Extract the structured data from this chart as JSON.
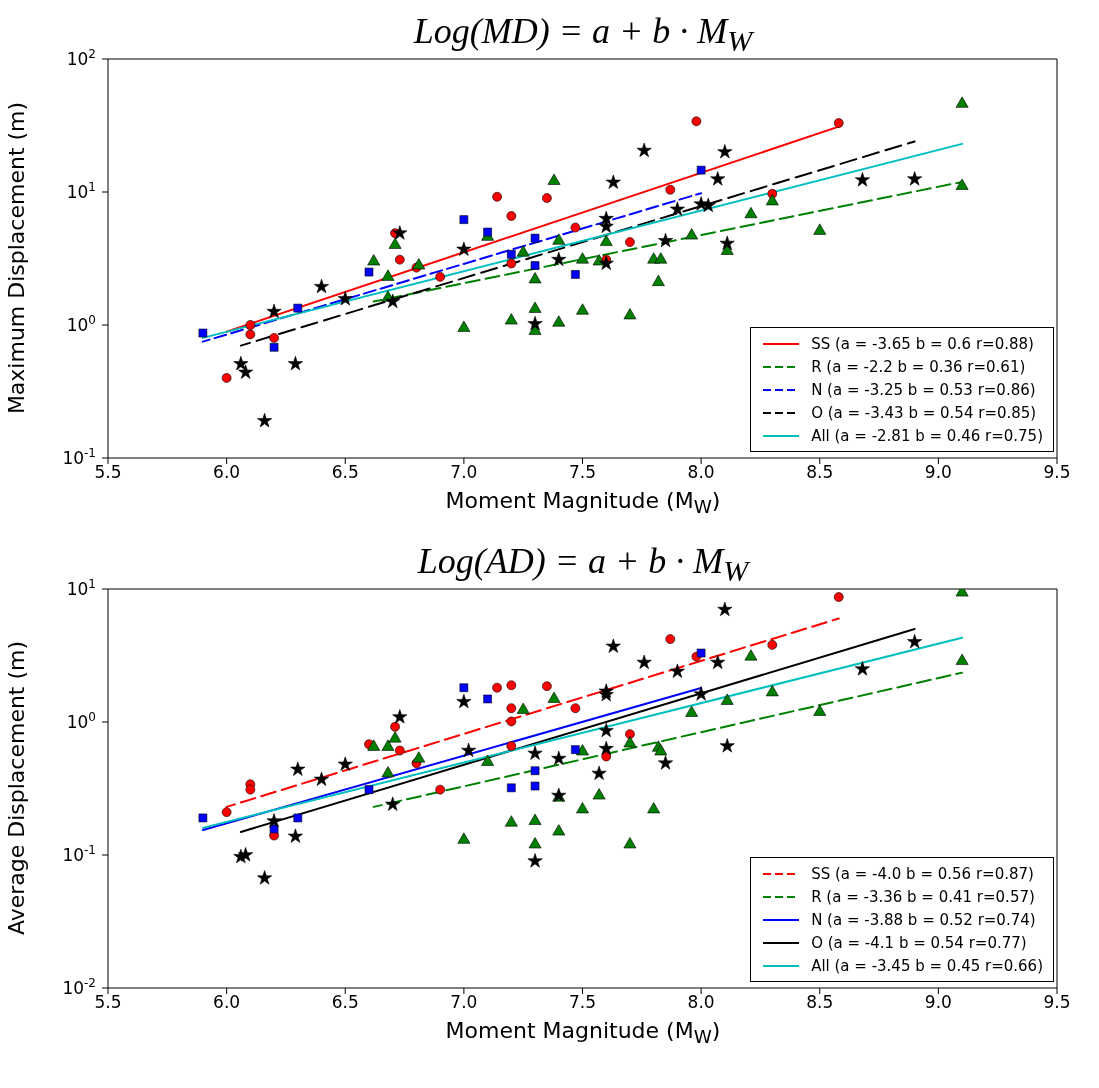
{
  "chart_data": [
    {
      "type": "scatter",
      "title": "Log(MD) = a + b · M$_{W}$",
      "xlabel": "Moment Magnitude (M$_{W}$)",
      "ylabel": "Maximum Displacement (m)",
      "log": "y",
      "grid": false,
      "legend": "bottom right",
      "xlim": [
        5.5,
        9.5
      ],
      "xticks": [
        {
          "value": 5.5,
          "label": "5.5"
        },
        {
          "value": 6,
          "label": "6.0"
        },
        {
          "value": 6.5,
          "label": "6.5"
        },
        {
          "value": 7,
          "label": "7.0"
        },
        {
          "value": 7.5,
          "label": "7.5"
        },
        {
          "value": 8,
          "label": "8.0"
        },
        {
          "value": 8.5,
          "label": "8.5"
        },
        {
          "value": 9,
          "label": "9.0"
        },
        {
          "value": 9.5,
          "label": "9.5"
        }
      ],
      "ylim": [
        0.1,
        100
      ],
      "yticks": [
        {
          "value": 0.1,
          "label": "10$^{-1}$"
        },
        {
          "value": 1,
          "label": "10$^{0}$"
        },
        {
          "value": 10,
          "label": "10$^{1}$"
        },
        {
          "value": 100,
          "label": "10$^{2}$"
        }
      ],
      "series": [
        {
          "marker": "circle",
          "color": "#ff0000",
          "x": [
            6.0,
            6.1,
            6.1,
            6.2,
            6.71,
            6.73,
            6.8,
            6.9,
            7.14,
            7.2,
            7.2,
            7.35,
            7.47,
            7.6,
            7.7,
            7.87,
            7.98,
            8.3,
            8.58
          ],
          "values": [
            0.4,
            1.0,
            0.85,
            0.8,
            4.9,
            3.1,
            2.7,
            2.3,
            9.2,
            6.6,
            2.9,
            9.0,
            5.4,
            3.1,
            4.2,
            10.4,
            34,
            9.7,
            33
          ]
        },
        {
          "marker": "triangle",
          "color": "#008000",
          "x": [
            6.62,
            6.68,
            6.68,
            6.71,
            6.81,
            7.0,
            7.1,
            7.2,
            7.25,
            7.3,
            7.3,
            7.3,
            7.38,
            7.4,
            7.4,
            7.5,
            7.5,
            7.57,
            7.6,
            7.7,
            7.8,
            7.82,
            7.83,
            7.96,
            8.11,
            8.21,
            8.3,
            8.5,
            9.1,
            9.1
          ],
          "values": [
            3.0,
            2.3,
            1.6,
            4.0,
            2.8,
            0.95,
            4.6,
            1.08,
            3.5,
            2.2,
            1.32,
            0.9,
            12.1,
            4.3,
            1.04,
            3.1,
            1.28,
            3.0,
            4.2,
            1.18,
            3.1,
            2.1,
            3.1,
            4.7,
            3.6,
            6.8,
            8.5,
            5.1,
            46,
            11.1
          ]
        },
        {
          "marker": "square",
          "color": "#0000ff",
          "x": [
            5.9,
            6.2,
            6.3,
            6.6,
            7.0,
            7.1,
            7.2,
            7.3,
            7.3,
            7.47,
            8.0
          ],
          "values": [
            0.87,
            0.68,
            1.34,
            2.5,
            6.2,
            5.0,
            3.4,
            4.5,
            2.8,
            2.4,
            14.6
          ]
        },
        {
          "marker": "star",
          "color": "#000000",
          "x": [
            6.06,
            6.08,
            6.16,
            6.2,
            6.29,
            6.4,
            6.5,
            6.7,
            6.73,
            7.0,
            7.3,
            7.4,
            7.6,
            7.6,
            7.6,
            7.63,
            7.76,
            7.85,
            7.9,
            8.0,
            8.03,
            8.07,
            8.1,
            8.11,
            8.68,
            8.9
          ],
          "values": [
            0.51,
            0.44,
            0.19,
            1.26,
            0.51,
            1.94,
            1.57,
            1.5,
            4.9,
            3.7,
            1.02,
            3.1,
            6.3,
            5.5,
            2.9,
            11.8,
            20.5,
            4.3,
            7.4,
            8.1,
            7.9,
            12.5,
            20,
            4.1,
            12.3,
            12.5
          ]
        },
        {
          "type": "line",
          "name": "SS (a = -3.65 b = 0.6 r=0.88)",
          "color": "#ff0000",
          "line_style": "solid",
          "x": [
            6.0,
            8.58
          ],
          "values": [
            0.89,
            31
          ]
        },
        {
          "type": "line",
          "name": "R (a = -2.2 b = 0.36 r=0.61)",
          "color": "#008000",
          "line_style": "dashed",
          "x": [
            6.62,
            9.1
          ],
          "values": [
            1.5,
            11.9
          ]
        },
        {
          "type": "line",
          "name": "N (a = -3.25 b = 0.53 r=0.86)",
          "color": "#0000ff",
          "line_style": "dashed",
          "x": [
            5.9,
            8.0
          ],
          "values": [
            0.75,
            9.8
          ]
        },
        {
          "type": "line",
          "name": "O (a = -3.43 b = 0.54 r=0.85)",
          "color": "#000000",
          "line_style": "dashed",
          "x": [
            6.06,
            8.9
          ],
          "values": [
            0.7,
            24
          ]
        },
        {
          "type": "line",
          "name": "All (a = -2.81 b = 0.46 r=0.75)",
          "color": "#00bfbf",
          "line_style": "solid",
          "x": [
            5.9,
            9.1
          ],
          "values": [
            0.8,
            23
          ]
        }
      ]
    },
    {
      "type": "scatter",
      "title": "Log(AD) = a + b · M$_{W}$",
      "xlabel": "Moment Magnitude (M$_{W}$)",
      "ylabel": "Average Displacement (m)",
      "log": "y",
      "grid": false,
      "legend": "bottom right",
      "xlim": [
        5.5,
        9.5
      ],
      "xticks": [
        {
          "value": 5.5,
          "label": "5.5"
        },
        {
          "value": 6,
          "label": "6.0"
        },
        {
          "value": 6.5,
          "label": "6.5"
        },
        {
          "value": 7,
          "label": "7.0"
        },
        {
          "value": 7.5,
          "label": "7.5"
        },
        {
          "value": 8,
          "label": "8.0"
        },
        {
          "value": 8.5,
          "label": "8.5"
        },
        {
          "value": 9,
          "label": "9.0"
        },
        {
          "value": 9.5,
          "label": "9.5"
        }
      ],
      "ylim": [
        0.01,
        10
      ],
      "yticks": [
        {
          "value": 0.01,
          "label": "10$^{-2}$"
        },
        {
          "value": 0.1,
          "label": "10$^{-1}$"
        },
        {
          "value": 1,
          "label": "10$^{0}$"
        },
        {
          "value": 10,
          "label": "10$^{1}$"
        }
      ],
      "series": [
        {
          "marker": "circle",
          "color": "#ff0000",
          "x": [
            6.0,
            6.1,
            6.1,
            6.2,
            6.6,
            6.71,
            6.73,
            6.8,
            6.9,
            7.14,
            7.2,
            7.2,
            7.2,
            7.2,
            7.35,
            7.47,
            7.6,
            7.7,
            7.87,
            7.98,
            8.3,
            8.58
          ],
          "values": [
            0.21,
            0.34,
            0.31,
            0.14,
            0.68,
            0.92,
            0.61,
            0.49,
            0.31,
            1.81,
            1.89,
            1.27,
            1.01,
            0.66,
            1.86,
            1.27,
            0.55,
            0.81,
            4.2,
            3.1,
            3.8,
            8.7
          ]
        },
        {
          "marker": "triangle",
          "color": "#008000",
          "x": [
            6.62,
            6.68,
            6.68,
            6.71,
            6.81,
            7.0,
            7.1,
            7.2,
            7.25,
            7.3,
            7.3,
            7.38,
            7.4,
            7.4,
            7.5,
            7.5,
            7.57,
            7.7,
            7.7,
            7.8,
            7.82,
            7.83,
            7.96,
            8.11,
            8.21,
            8.3,
            8.5,
            9.1,
            9.1
          ],
          "values": [
            0.65,
            0.65,
            0.41,
            0.75,
            0.53,
            0.13,
            0.5,
            0.175,
            1.23,
            0.18,
            0.12,
            1.49,
            0.27,
            0.15,
            0.6,
            0.22,
            0.28,
            0.69,
            0.12,
            0.22,
            0.64,
            0.6,
            1.17,
            1.44,
            3.1,
            1.67,
            1.19,
            9.4,
            2.87
          ]
        },
        {
          "marker": "square",
          "color": "#0000ff",
          "x": [
            5.9,
            6.2,
            6.3,
            6.6,
            7.0,
            7.1,
            7.2,
            7.3,
            7.3,
            7.47,
            8.0
          ],
          "values": [
            0.19,
            0.157,
            0.19,
            0.31,
            1.81,
            1.49,
            0.32,
            0.43,
            0.33,
            0.62,
            3.3
          ]
        },
        {
          "marker": "star",
          "color": "#000000",
          "x": [
            6.06,
            6.08,
            6.16,
            6.2,
            6.29,
            6.3,
            6.4,
            6.5,
            6.7,
            6.73,
            7.0,
            7.02,
            7.3,
            7.3,
            7.4,
            7.4,
            7.57,
            7.6,
            7.6,
            7.6,
            7.6,
            7.63,
            7.76,
            7.85,
            7.9,
            8.0,
            8.07,
            8.1,
            8.11,
            8.68,
            8.9
          ],
          "values": [
            0.097,
            0.1,
            0.067,
            0.18,
            0.138,
            0.44,
            0.37,
            0.48,
            0.24,
            1.09,
            1.42,
            0.61,
            0.58,
            0.09,
            0.53,
            0.28,
            0.41,
            1.7,
            1.6,
            0.86,
            0.63,
            3.7,
            2.8,
            0.49,
            2.4,
            1.62,
            2.8,
            7.0,
            0.66,
            2.5,
            4.0
          ]
        },
        {
          "type": "line",
          "name": "SS (a = -4.0 b = 0.56 r=0.87)",
          "color": "#ff0000",
          "line_style": "dashed",
          "x": [
            6.0,
            8.58
          ],
          "values": [
            0.23,
            6.0
          ]
        },
        {
          "type": "line",
          "name": "R (a = -3.36 b = 0.41 r=0.57)",
          "color": "#008000",
          "line_style": "dashed",
          "x": [
            6.62,
            9.1
          ],
          "values": [
            0.23,
            2.35
          ]
        },
        {
          "type": "line",
          "name": "N (a = -3.88 b = 0.52 r=0.74)",
          "color": "#0000ff",
          "line_style": "solid",
          "x": [
            5.9,
            8.0
          ],
          "values": [
            0.154,
            1.8
          ]
        },
        {
          "type": "line",
          "name": "O (a = -4.1 b = 0.54 r=0.77)",
          "color": "#000000",
          "line_style": "solid",
          "x": [
            6.06,
            8.9
          ],
          "values": [
            0.149,
            5.0
          ]
        },
        {
          "type": "line",
          "name": "All (a = -3.45 b = 0.45 r=0.66)",
          "color": "#00bfbf",
          "line_style": "solid",
          "x": [
            5.9,
            9.1
          ],
          "values": [
            0.16,
            4.3
          ]
        }
      ]
    }
  ]
}
